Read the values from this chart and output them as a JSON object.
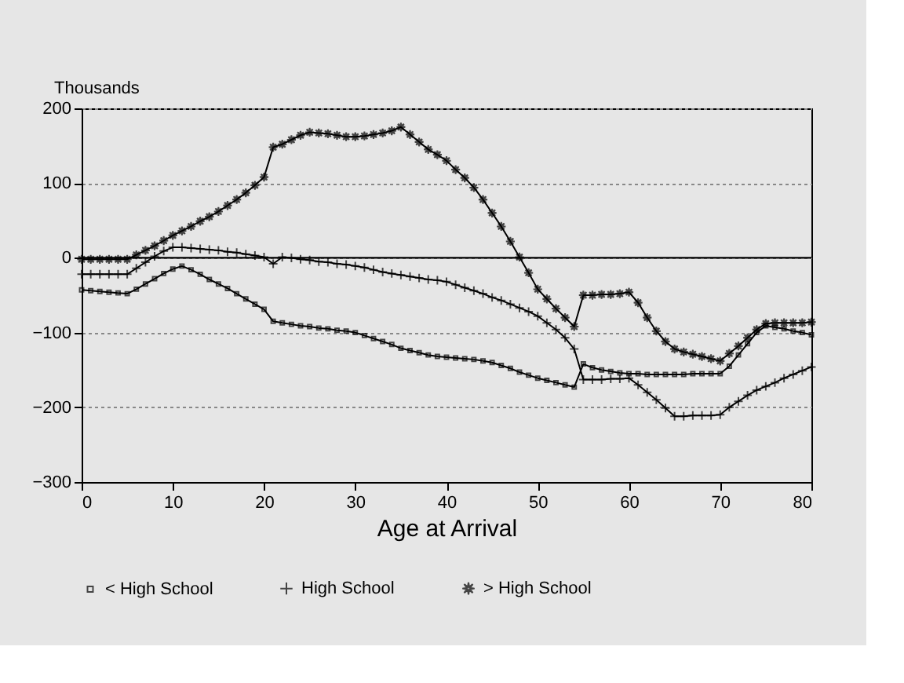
{
  "chart_data": {
    "type": "line",
    "xlabel": "Age at Arrival",
    "ylabel": "Thousands",
    "x": [
      0,
      1,
      2,
      3,
      4,
      5,
      6,
      7,
      8,
      9,
      10,
      11,
      12,
      13,
      14,
      15,
      16,
      17,
      18,
      19,
      20,
      21,
      22,
      23,
      24,
      25,
      26,
      27,
      28,
      29,
      30,
      31,
      32,
      33,
      34,
      35,
      36,
      37,
      38,
      39,
      40,
      41,
      42,
      43,
      44,
      45,
      46,
      47,
      48,
      49,
      50,
      51,
      52,
      53,
      54,
      55,
      56,
      57,
      58,
      59,
      60,
      61,
      62,
      63,
      64,
      65,
      66,
      67,
      68,
      69,
      70,
      71,
      72,
      73,
      74,
      75,
      76,
      77,
      78,
      79,
      80
    ],
    "series": [
      {
        "name": "< High School",
        "color": "#000000",
        "marker": "square",
        "values": [
          -43,
          -44,
          -45,
          -46,
          -47,
          -48,
          -42,
          -35,
          -28,
          -21,
          -15,
          -11,
          -16,
          -22,
          -29,
          -35,
          -41,
          -48,
          -55,
          -62,
          -69,
          -85,
          -87,
          -89,
          -91,
          -92,
          -94,
          -95,
          -97,
          -98,
          -100,
          -104,
          -108,
          -112,
          -116,
          -121,
          -124,
          -127,
          -130,
          -132,
          -133,
          -134,
          -135,
          -136,
          -138,
          -140,
          -144,
          -148,
          -153,
          -157,
          -161,
          -164,
          -167,
          -170,
          -173,
          -142,
          -147,
          -150,
          -152,
          -154,
          -155,
          -155,
          -156,
          -156,
          -156,
          -156,
          -156,
          -155,
          -155,
          -155,
          -155,
          -145,
          -130,
          -115,
          -100,
          -91,
          -93,
          -95,
          -98,
          -100,
          -103
        ]
      },
      {
        "name": "High School",
        "color": "#000000",
        "marker": "cross",
        "values": [
          -22,
          -22,
          -22,
          -22,
          -22,
          -22,
          -14,
          -6,
          2,
          9,
          14,
          14,
          13,
          12,
          11,
          10,
          8,
          7,
          5,
          3,
          1,
          -8,
          1,
          0,
          -2,
          -3,
          -5,
          -6,
          -8,
          -9,
          -11,
          -13,
          -16,
          -19,
          -21,
          -23,
          -25,
          -27,
          -29,
          -30,
          -32,
          -36,
          -40,
          -44,
          -48,
          -53,
          -57,
          -62,
          -67,
          -72,
          -78,
          -87,
          -96,
          -107,
          -122,
          -163,
          -163,
          -163,
          -162,
          -162,
          -161,
          -170,
          -180,
          -190,
          -201,
          -212,
          -212,
          -211,
          -211,
          -211,
          -210,
          -200,
          -192,
          -184,
          -177,
          -172,
          -167,
          -161,
          -156,
          -151,
          -146
        ]
      },
      {
        "name": "> High School",
        "color": "#000000",
        "marker": "star",
        "values": [
          -2,
          -2,
          -2,
          -2,
          -2,
          -2,
          4,
          10,
          16,
          23,
          30,
          36,
          42,
          49,
          55,
          62,
          70,
          78,
          87,
          97,
          108,
          148,
          152,
          158,
          164,
          168,
          167,
          166,
          164,
          162,
          162,
          163,
          165,
          167,
          170,
          175,
          165,
          155,
          145,
          138,
          130,
          118,
          107,
          94,
          78,
          60,
          42,
          22,
          1,
          -20,
          -42,
          -55,
          -68,
          -80,
          -92,
          -50,
          -50,
          -49,
          -49,
          -48,
          -46,
          -60,
          -80,
          -98,
          -112,
          -122,
          -126,
          -129,
          -132,
          -135,
          -138,
          -128,
          -118,
          -107,
          -96,
          -88,
          -87,
          -87,
          -87,
          -87,
          -86
        ]
      }
    ],
    "xlim": [
      0,
      80
    ],
    "xticks": [
      0,
      10,
      20,
      30,
      40,
      50,
      60,
      70,
      80
    ],
    "ylim": [
      -300,
      200
    ],
    "yticks": [
      -300,
      -200,
      -100,
      0,
      100,
      200
    ],
    "ref_lines": [
      {
        "axis": "y",
        "value": 0,
        "color": "#000000"
      }
    ],
    "grid": "y",
    "legend": "bottom",
    "line_style": "solid"
  }
}
